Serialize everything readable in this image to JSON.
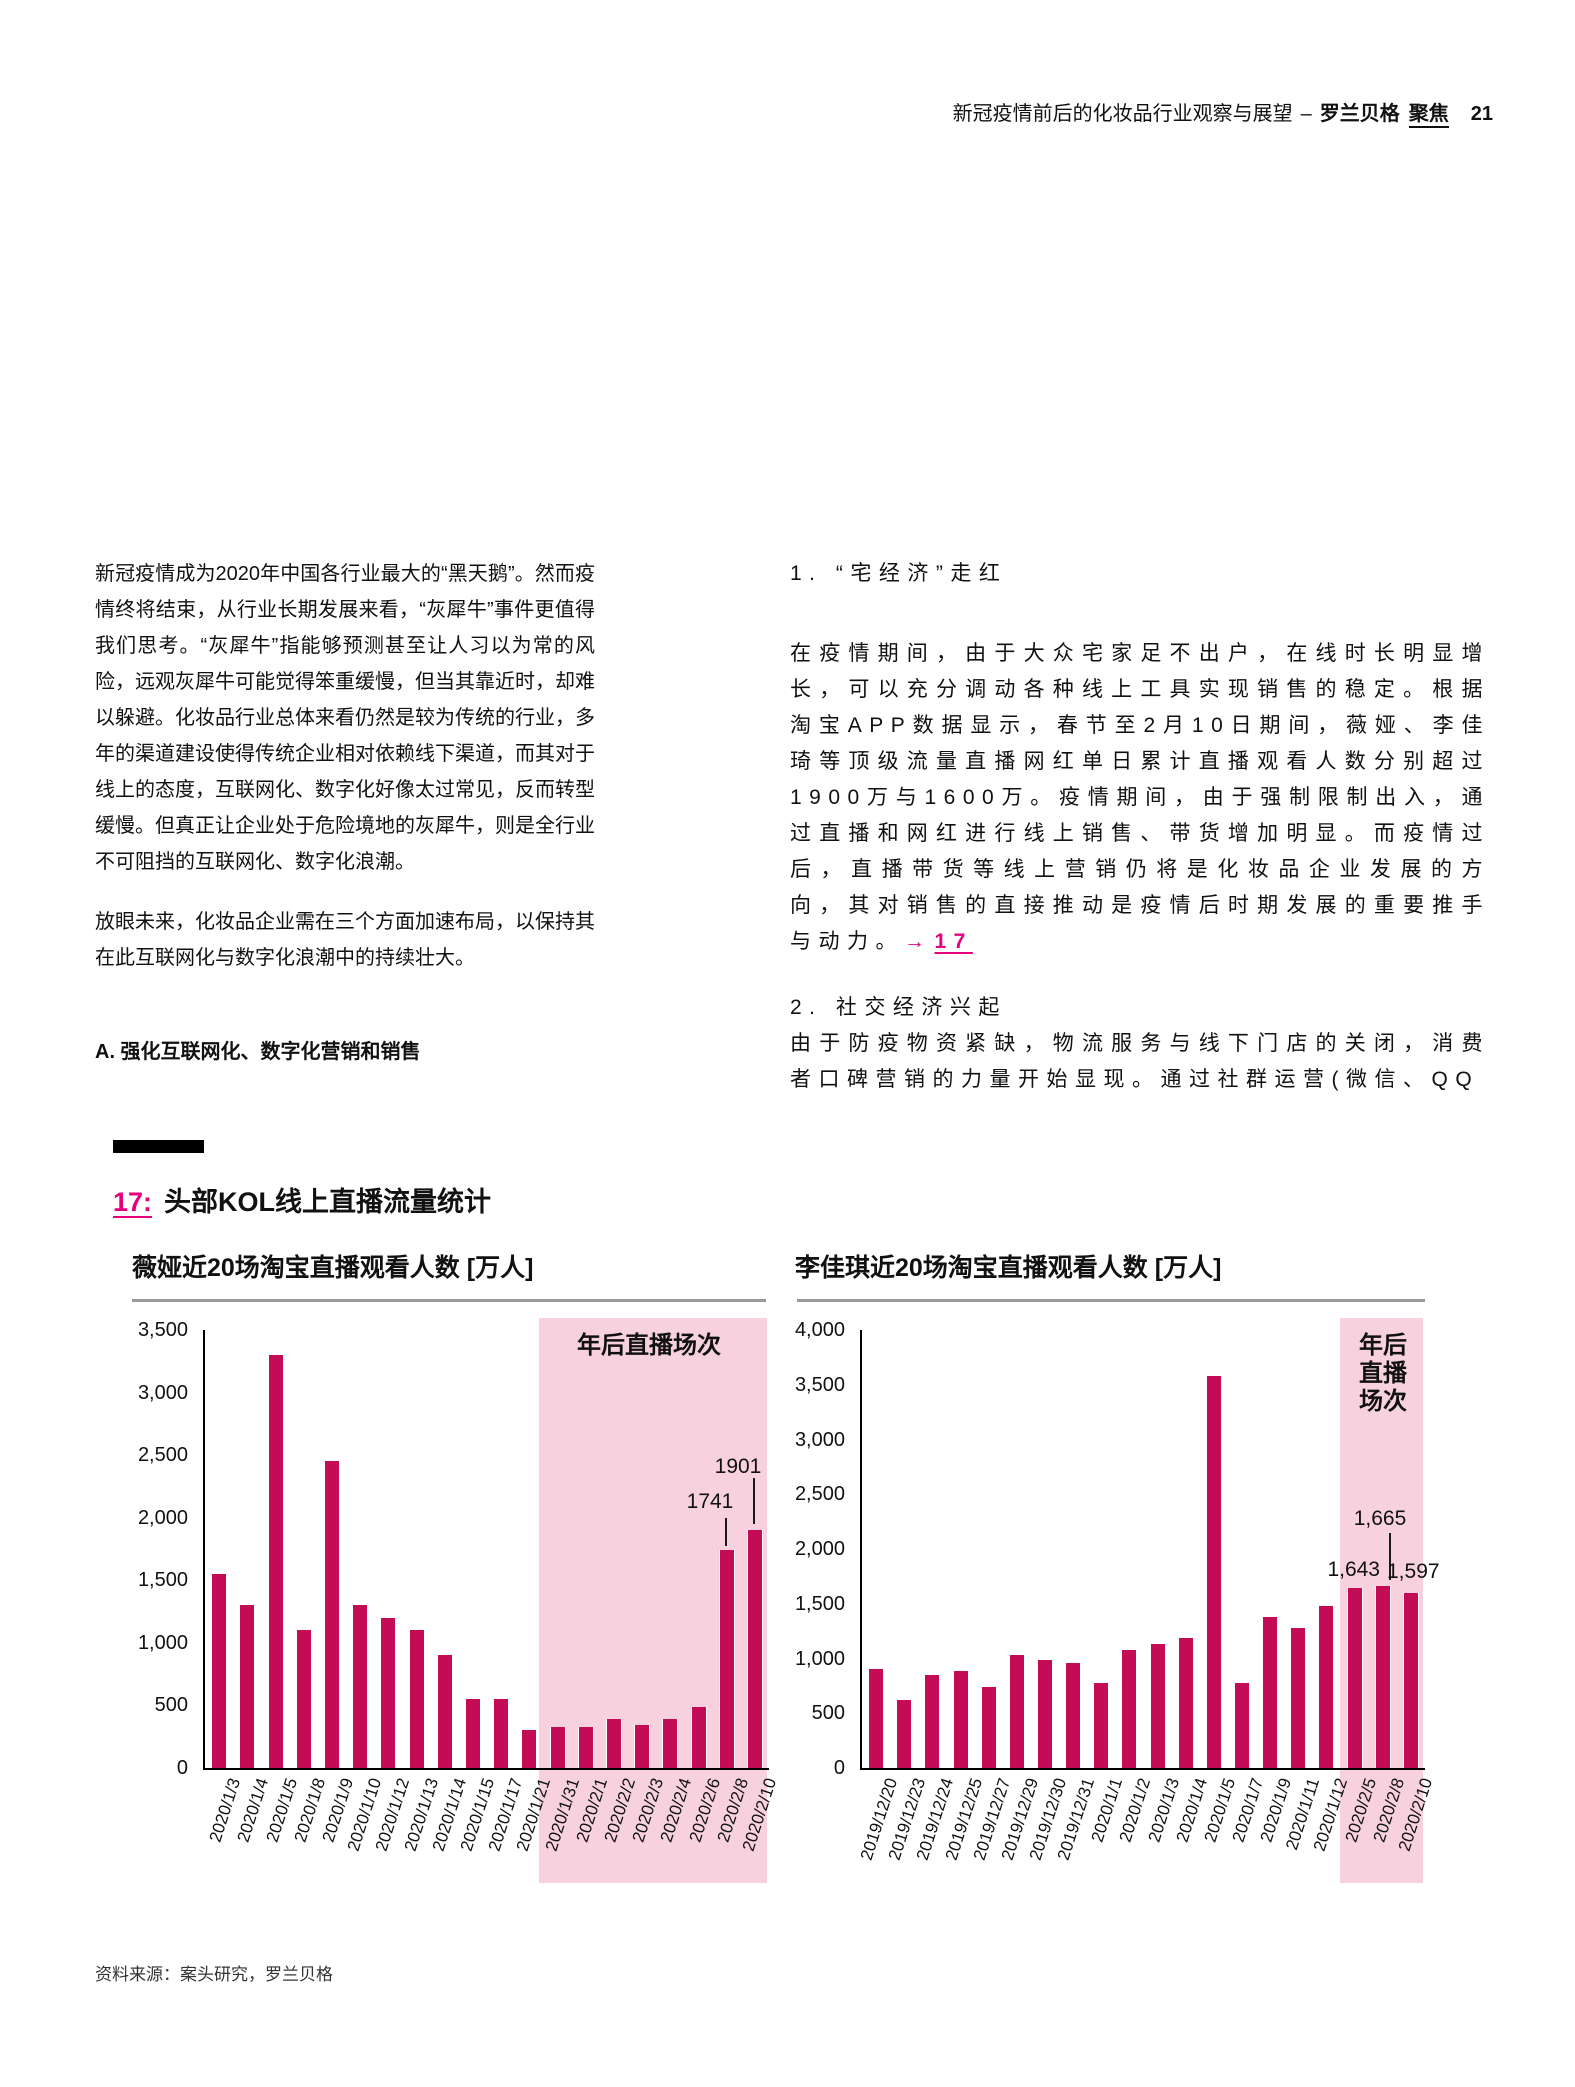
{
  "header": {
    "title": "新冠疫情前后的化妆品行业观察与展望",
    "separator": "–",
    "brand": "罗兰贝格",
    "brand_suffix": "聚焦",
    "page_number": "21"
  },
  "columns": {
    "left": {
      "p1": "新冠疫情成为2020年中国各行业最大的“黑天鹅”。然而疫情终将结束，从行业长期发展来看，“灰犀牛”事件更值得我们思考。“灰犀牛”指能够预测甚至让人习以为常的风险，远观灰犀牛可能觉得笨重缓慢，但当其靠近时，却难以躲避。化妆品行业总体来看仍然是较为传统的行业，多年的渠道建设使得传统企业相对依赖线下渠道，而其对于线上的态度，互联网化、数字化好像太过常见，反而转型缓慢。但真正让企业处于危险境地的灰犀牛，则是全行业不可阻挡的互联网化、数字化浪潮。",
      "p2": "放眼未来，化妆品企业需在三个方面加速布局，以保持其在此互联网化与数字化浪潮中的持续壮大。",
      "heading": "A. 强化互联网化、数字化营销和销售"
    },
    "right": {
      "s1_title": "1. “宅经济”走红",
      "s1_para": "在疫情期间，由于大众宅家足不出户，在线时长明显增长，可以充分调动各种线上工具实现销售的稳定。根据淘宝APP数据显示，春节至2月10日期间，薇娅、李佳琦等顶级流量直播网红单日累计直播观看人数分别超过1900万与1600万。疫情期间，由于强制限制出入，通过直播和网红进行线上销售、带货增加明显。而疫情过后，直播带货等线上营销仍将是化妆品企业发展的方向，其对销售的直接推动是疫情后时期发展的重要推手与动力。",
      "s1_link_arrow": "→",
      "s1_link_num": "17",
      "s2_title": "2. 社交经济兴起",
      "s2_para": "由于防疫物资紧缺，物流服务与线下门店的关闭，消费者口碑营销的力量开始显现。通过社群运营(微信、QQ"
    }
  },
  "exhibit": {
    "number": "17:",
    "title": "头部KOL线上直播流量统计",
    "source": "资料来源：案头研究，罗兰贝格"
  },
  "colors": {
    "bar": "#c40b56",
    "highlight": "#f7d2de",
    "accent_link": "#e5017d",
    "rule": "#9a9a9a"
  },
  "chart_data": [
    {
      "type": "bar",
      "title": "薇娅近20场淘宝直播观看人数 [万人]",
      "ylabel": "万人",
      "ylim": [
        0,
        3500
      ],
      "ytick_step": 500,
      "grid": false,
      "categories": [
        "2020/1/3",
        "2020/1/4",
        "2020/1/5",
        "2020/1/8",
        "2020/1/9",
        "2020/1/10",
        "2020/1/12",
        "2020/1/13",
        "2020/1/14",
        "2020/1/15",
        "2020/1/17",
        "2020/1/21",
        "2020/1/31",
        "2020/2/1",
        "2020/2/2",
        "2020/2/3",
        "2020/2/4",
        "2020/2/6",
        "2020/2/8",
        "2020/2/10"
      ],
      "values": [
        1550,
        1300,
        3300,
        1100,
        2450,
        1300,
        1200,
        1100,
        900,
        550,
        550,
        300,
        330,
        330,
        390,
        340,
        390,
        490,
        1741,
        1901
      ],
      "highlight": {
        "start_index": 12,
        "label": "年后直播场次"
      },
      "value_labels": [
        {
          "index": 18,
          "text": "1741"
        },
        {
          "index": 19,
          "text": "1901"
        }
      ]
    },
    {
      "type": "bar",
      "title": "李佳琪近20场淘宝直播观看人数 [万人]",
      "ylabel": "万人",
      "ylim": [
        0,
        4000
      ],
      "ytick_step": 500,
      "grid": false,
      "categories": [
        "2019/12/20",
        "2019/12/23",
        "2019/12/24",
        "2019/12/25",
        "2019/12/27",
        "2019/12/29",
        "2019/12/30",
        "2019/12/31",
        "2020/1/1",
        "2020/1/2",
        "2020/1/3",
        "2020/1/4",
        "2020/1/5",
        "2020/1/7",
        "2020/1/9",
        "2020/1/11",
        "2020/1/12",
        "2020/2/5",
        "2020/2/8",
        "2020/2/10"
      ],
      "values": [
        900,
        620,
        850,
        890,
        740,
        1030,
        990,
        960,
        780,
        1080,
        1130,
        1190,
        3580,
        780,
        1380,
        1280,
        1480,
        1643,
        1665,
        1597
      ],
      "highlight": {
        "start_index": 17,
        "label": "年后\n直播\n场次"
      },
      "value_labels": [
        {
          "index": 17,
          "text": "1,643"
        },
        {
          "index": 18,
          "text": "1,665"
        },
        {
          "index": 19,
          "text": "1,597"
        }
      ]
    }
  ]
}
